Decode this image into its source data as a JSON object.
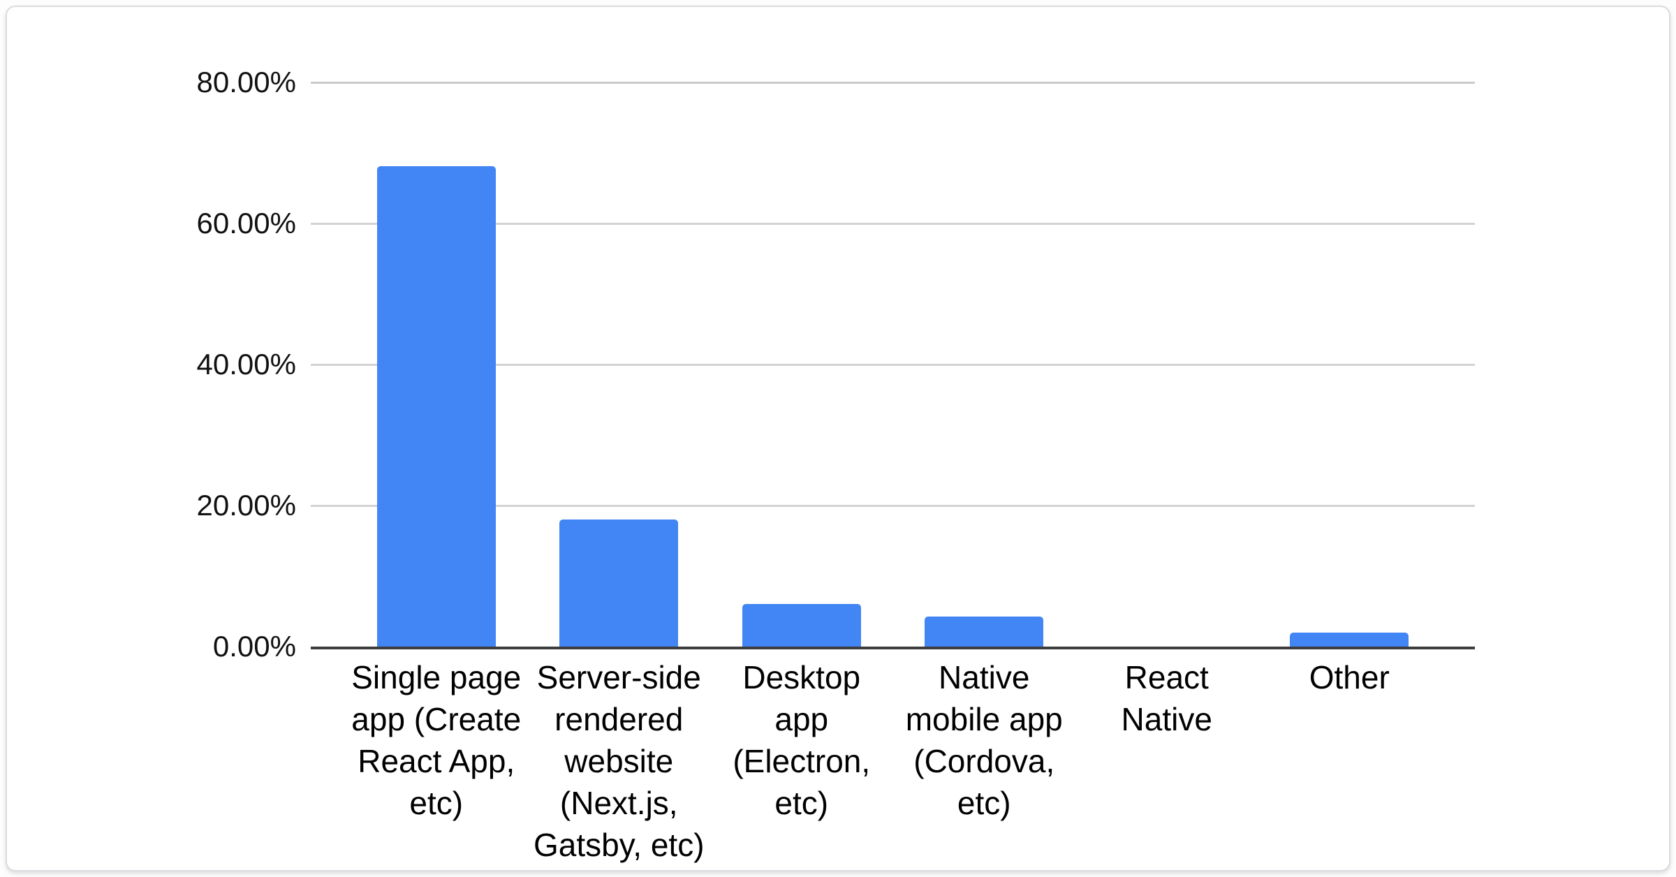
{
  "chart_data": {
    "type": "bar",
    "title": "",
    "xlabel": "",
    "ylabel": "",
    "ylim": [
      0,
      80
    ],
    "grid": true,
    "legend": "none",
    "bar_color": "#4285f4",
    "axis_line_color": "#3d3d3d",
    "gridline_color": "#d2d2d2",
    "y_ticks": {
      "labels": [
        "80.00%",
        "60.00%",
        "40.00%",
        "20.00%",
        "0.00%"
      ],
      "values": [
        80,
        60,
        40,
        20,
        0
      ]
    },
    "categories": [
      "Single page app (Create React App, etc)",
      "Server-side rendered website (Next.js, Gatsby, etc)",
      "Desktop app (Electron, etc)",
      "Native mobile app (Cordova, etc)",
      "React Native",
      "Other"
    ],
    "category_label_lines": [
      [
        "Single page",
        "app (Create",
        "React App,",
        "etc)"
      ],
      [
        "Server-side",
        "rendered",
        "website",
        "(Next.js,",
        "Gatsby, etc)"
      ],
      [
        "Desktop",
        "app",
        "(Electron,",
        "etc)"
      ],
      [
        "Native",
        "mobile app",
        "(Cordova,",
        "etc)"
      ],
      [
        "React",
        "Native"
      ],
      [
        "Other"
      ]
    ],
    "values": [
      68.5,
      18.4,
      6.4,
      4.7,
      0.0,
      2.4
    ],
    "value_unit": "%"
  }
}
